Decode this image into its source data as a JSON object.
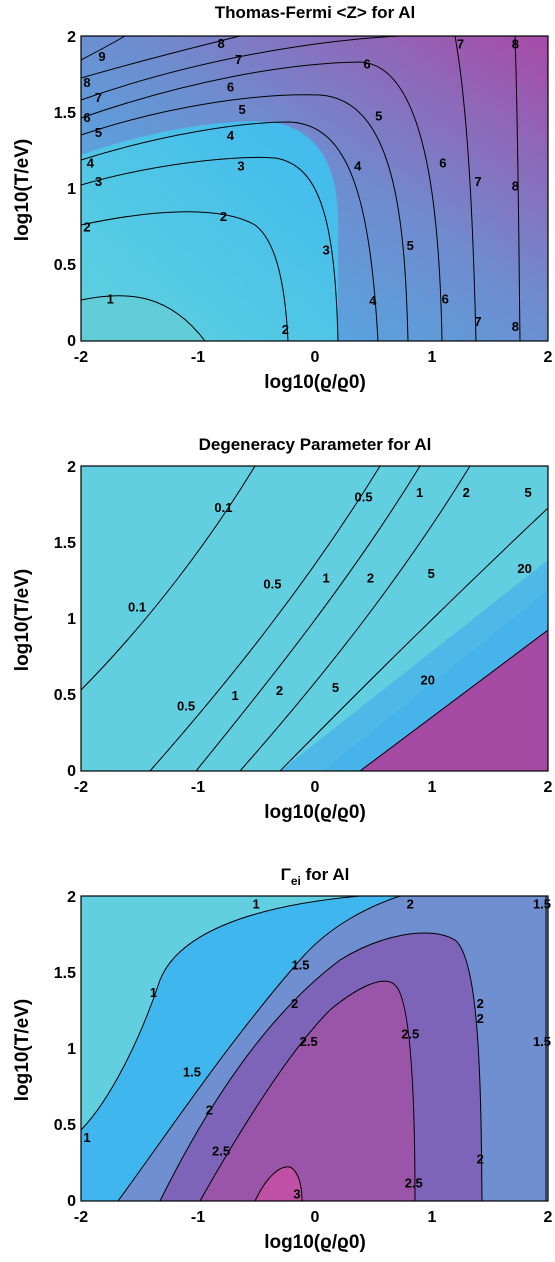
{
  "chart_data": [
    {
      "type": "contour",
      "title": "Thomas-Fermi <Z> for Al",
      "xlabel": "log10(ϱ/ϱ0)",
      "ylabel": "log10(T/eV)",
      "xlim": [
        -2,
        2
      ],
      "ylim": [
        0,
        2
      ],
      "xticks": [
        "-2",
        "-1",
        "0",
        "1",
        "2"
      ],
      "yticks": [
        "0",
        "0.5",
        "1",
        "1.5",
        "2"
      ],
      "contour_levels": [
        "1",
        "2",
        "3",
        "4",
        "5",
        "6",
        "7",
        "8",
        "9"
      ],
      "colors": {
        "low": "#5fd0e0",
        "mid": "#3fb9ee",
        "high": "#a148a8"
      },
      "contour_labels": [
        {
          "text": "1",
          "x": -1.75,
          "y": 0.28
        },
        {
          "text": "2",
          "x": -2.0,
          "y": 0.75
        },
        {
          "text": "2",
          "x": -0.78,
          "y": 0.82
        },
        {
          "text": "2",
          "x": -0.25,
          "y": 0.08
        },
        {
          "text": "3",
          "x": -1.85,
          "y": 1.05
        },
        {
          "text": "3",
          "x": -0.63,
          "y": 1.15
        },
        {
          "text": "3",
          "x": 0.1,
          "y": 0.6
        },
        {
          "text": "4",
          "x": -1.92,
          "y": 1.17
        },
        {
          "text": "4",
          "x": -0.72,
          "y": 1.35
        },
        {
          "text": "4",
          "x": 0.37,
          "y": 1.15
        },
        {
          "text": "4",
          "x": 0.5,
          "y": 0.27
        },
        {
          "text": "5",
          "x": -1.85,
          "y": 1.37
        },
        {
          "text": "5",
          "x": -0.62,
          "y": 1.52
        },
        {
          "text": "5",
          "x": 0.55,
          "y": 1.48
        },
        {
          "text": "5",
          "x": 0.82,
          "y": 0.63
        },
        {
          "text": "6",
          "x": -1.98,
          "y": 1.47
        },
        {
          "text": "6",
          "x": -0.72,
          "y": 1.67
        },
        {
          "text": "6",
          "x": 0.45,
          "y": 1.82
        },
        {
          "text": "6",
          "x": 1.1,
          "y": 1.17
        },
        {
          "text": "6",
          "x": 1.12,
          "y": 0.28
        },
        {
          "text": "7",
          "x": -1.85,
          "y": 1.6
        },
        {
          "text": "7",
          "x": -0.65,
          "y": 1.85
        },
        {
          "text": "7",
          "x": 1.25,
          "y": 1.95
        },
        {
          "text": "7",
          "x": 1.4,
          "y": 1.05
        },
        {
          "text": "7",
          "x": 1.4,
          "y": 0.13
        },
        {
          "text": "8",
          "x": -1.98,
          "y": 1.7
        },
        {
          "text": "8",
          "x": -0.8,
          "y": 1.97
        },
        {
          "text": "8",
          "x": 1.72,
          "y": 1.95
        },
        {
          "text": "8",
          "x": 1.72,
          "y": 1.02
        },
        {
          "text": "8",
          "x": 1.72,
          "y": 0.1
        },
        {
          "text": "9",
          "x": -1.82,
          "y": 1.87
        }
      ]
    },
    {
      "type": "contour",
      "title": "Degeneracy Parameter for Al",
      "xlabel": "log10(ϱ/ϱ0)",
      "ylabel": "log10(T/eV)",
      "xlim": [
        -2,
        2
      ],
      "ylim": [
        0,
        2
      ],
      "xticks": [
        "-2",
        "-1",
        "0",
        "1",
        "2"
      ],
      "yticks": [
        "0",
        "0.5",
        "1",
        "1.5",
        "2"
      ],
      "contour_levels": [
        "0.1",
        "0.5",
        "1",
        "2",
        "5",
        "20"
      ],
      "colors": {
        "low": "#62cfe0",
        "mid": "#45b7e8",
        "high": "#a54aa2"
      },
      "contour_labels": [
        {
          "text": "0.1",
          "x": -0.78,
          "y": 1.73
        },
        {
          "text": "0.1",
          "x": -1.52,
          "y": 1.08
        },
        {
          "text": "0.5",
          "x": 0.42,
          "y": 1.8
        },
        {
          "text": "0.5",
          "x": -0.36,
          "y": 1.23
        },
        {
          "text": "0.5",
          "x": -1.1,
          "y": 0.43
        },
        {
          "text": "1",
          "x": 0.9,
          "y": 1.83
        },
        {
          "text": "1",
          "x": 0.1,
          "y": 1.27
        },
        {
          "text": "1",
          "x": -0.68,
          "y": 0.5
        },
        {
          "text": "2",
          "x": 1.3,
          "y": 1.83
        },
        {
          "text": "2",
          "x": 0.48,
          "y": 1.27
        },
        {
          "text": "2",
          "x": -0.3,
          "y": 0.53
        },
        {
          "text": "5",
          "x": 1.83,
          "y": 1.83
        },
        {
          "text": "5",
          "x": 1.0,
          "y": 1.3
        },
        {
          "text": "5",
          "x": 0.18,
          "y": 0.55
        },
        {
          "text": "20",
          "x": 1.8,
          "y": 1.33
        },
        {
          "text": "20",
          "x": 0.97,
          "y": 0.6
        }
      ]
    },
    {
      "type": "contour",
      "title": "Γ_ei for Al",
      "title_main": "Γ",
      "title_sub": "ei",
      "title_rest": " for Al",
      "xlabel": "log10(ϱ/ϱ0)",
      "ylabel": "log10(T/eV)",
      "xlim": [
        -2,
        2
      ],
      "ylim": [
        0,
        2
      ],
      "xticks": [
        "-2",
        "-1",
        "0",
        "1",
        "2"
      ],
      "yticks": [
        "0",
        "0.5",
        "1",
        "1.5",
        "2"
      ],
      "contour_levels": [
        "1",
        "1.5",
        "2",
        "2.5",
        "3"
      ],
      "colors": {
        "low": "#62cfe0",
        "mid": "#6f8fd0",
        "high": "#9a55a8"
      },
      "contour_labels": [
        {
          "text": "1",
          "x": -0.5,
          "y": 1.95
        },
        {
          "text": "1",
          "x": -1.38,
          "y": 1.37
        },
        {
          "text": "1",
          "x": -1.95,
          "y": 0.42
        },
        {
          "text": "1.5",
          "x": -0.12,
          "y": 1.55
        },
        {
          "text": "1.5",
          "x": -1.05,
          "y": 0.85
        },
        {
          "text": "1.5",
          "x": 2.0,
          "y": 1.95
        },
        {
          "text": "1.5",
          "x": 2.0,
          "y": 1.05
        },
        {
          "text": "2",
          "x": 0.82,
          "y": 1.95
        },
        {
          "text": "2",
          "x": -0.17,
          "y": 1.3
        },
        {
          "text": "2",
          "x": -0.9,
          "y": 0.6
        },
        {
          "text": "2",
          "x": 1.42,
          "y": 1.3
        },
        {
          "text": "2",
          "x": 1.42,
          "y": 1.2
        },
        {
          "text": "2",
          "x": 1.42,
          "y": 0.28
        },
        {
          "text": "2.5",
          "x": -0.05,
          "y": 1.05
        },
        {
          "text": "2.5",
          "x": 0.82,
          "y": 1.1
        },
        {
          "text": "2.5",
          "x": -0.8,
          "y": 0.33
        },
        {
          "text": "2.5",
          "x": 0.85,
          "y": 0.12
        },
        {
          "text": "3",
          "x": -0.15,
          "y": 0.05
        }
      ]
    }
  ]
}
